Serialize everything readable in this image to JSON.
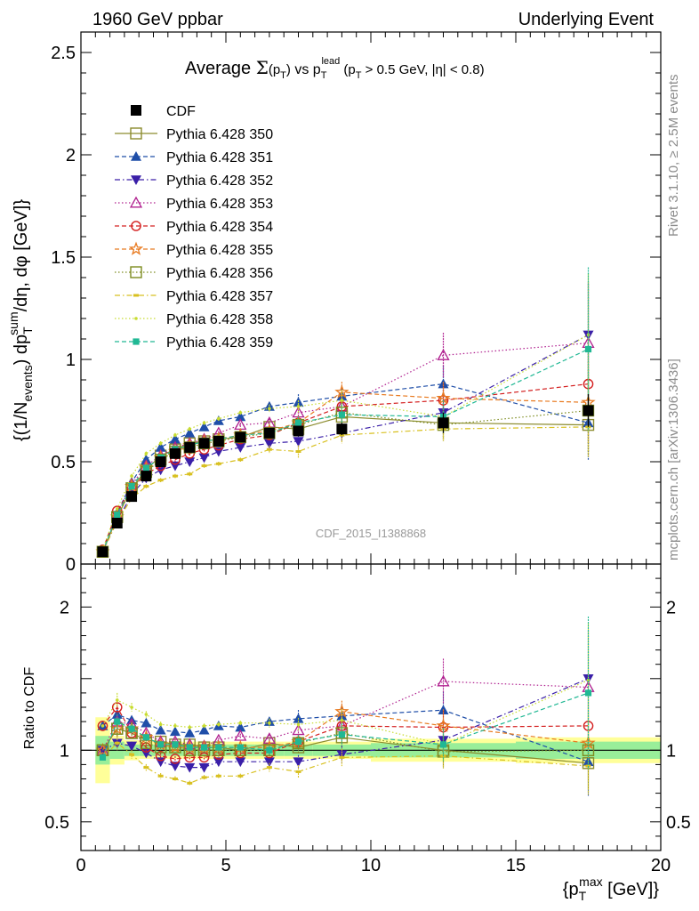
{
  "header": {
    "left": "1960 GeV ppbar",
    "right": "Underlying Event"
  },
  "side_labels": {
    "rivet": "Rivet 3.1.10, ≥ 2.5M events",
    "mcplots": "mcplots.cern.ch [arXiv:1306.3436]"
  },
  "watermark": "CDF_2015_I1388868",
  "chart_data": [
    {
      "type": "scatter",
      "title": "Average Σ(p_T) vs p_T^lead (p_T > 0.5 GeV, |η| < 0.8)",
      "ylabel": "{(1/N_events) dp_T^sum/dη, dφ [GeV]}",
      "xlim": [
        0,
        20
      ],
      "ylim": [
        0,
        2.6
      ],
      "yticks": [
        0,
        0.5,
        1,
        1.5,
        2,
        2.5
      ],
      "ytick_labels": [
        "0",
        "0.5",
        "1",
        "1.5",
        "2",
        "2.5"
      ],
      "legend_position": "upper-left",
      "x": [
        0.75,
        1.25,
        1.75,
        2.25,
        2.75,
        3.25,
        3.75,
        4.25,
        4.75,
        5.5,
        6.5,
        7.5,
        9.0,
        12.5,
        17.5
      ],
      "series": [
        {
          "name": "CDF",
          "color": "#000000",
          "marker": "square-filled",
          "line": "none",
          "values": [
            0.06,
            0.2,
            0.33,
            0.43,
            0.5,
            0.54,
            0.57,
            0.59,
            0.6,
            0.62,
            0.64,
            0.65,
            0.66,
            0.69,
            0.75
          ],
          "errors": [
            0.01,
            0.02,
            0.02,
            0.02,
            0.02,
            0.02,
            0.02,
            0.02,
            0.02,
            0.02,
            0.02,
            0.02,
            0.03,
            0.05,
            0.08
          ]
        },
        {
          "name": "Pythia 6.428 350",
          "color": "#8c8c2e",
          "marker": "square-open",
          "line": "solid",
          "values": [
            0.06,
            0.23,
            0.37,
            0.46,
            0.53,
            0.56,
            0.59,
            0.6,
            0.61,
            0.62,
            0.67,
            0.66,
            0.72,
            0.69,
            0.68
          ],
          "errors": [
            0.0,
            0.01,
            0.01,
            0.01,
            0.01,
            0.01,
            0.01,
            0.01,
            0.01,
            0.01,
            0.02,
            0.03,
            0.05,
            0.08,
            0.15
          ]
        },
        {
          "name": "Pythia 6.428 351",
          "color": "#1f4ea8",
          "marker": "triangle-up-filled",
          "line": "dashed",
          "values": [
            0.07,
            0.25,
            0.4,
            0.51,
            0.57,
            0.61,
            0.64,
            0.67,
            0.7,
            0.72,
            0.77,
            0.79,
            0.82,
            0.88,
            0.69
          ],
          "errors": [
            0.0,
            0.01,
            0.01,
            0.01,
            0.01,
            0.01,
            0.01,
            0.01,
            0.01,
            0.01,
            0.02,
            0.04,
            0.05,
            0.09,
            0.18
          ]
        },
        {
          "name": "Pythia 6.428 352",
          "color": "#3a1fa8",
          "marker": "triangle-down-filled",
          "line": "dashdot",
          "values": [
            0.06,
            0.21,
            0.34,
            0.42,
            0.46,
            0.48,
            0.5,
            0.52,
            0.55,
            0.57,
            0.59,
            0.6,
            0.64,
            0.74,
            1.12
          ],
          "errors": [
            0.0,
            0.01,
            0.01,
            0.01,
            0.01,
            0.01,
            0.01,
            0.01,
            0.01,
            0.01,
            0.02,
            0.03,
            0.04,
            0.08,
            0.25
          ]
        },
        {
          "name": "Pythia 6.428 353",
          "color": "#b0208f",
          "marker": "triangle-up-open",
          "line": "dotted",
          "values": [
            0.06,
            0.24,
            0.39,
            0.48,
            0.53,
            0.57,
            0.59,
            0.61,
            0.64,
            0.68,
            0.69,
            0.74,
            0.77,
            1.02,
            1.08
          ],
          "errors": [
            0.0,
            0.01,
            0.01,
            0.01,
            0.01,
            0.01,
            0.01,
            0.01,
            0.01,
            0.01,
            0.02,
            0.03,
            0.05,
            0.11,
            0.3
          ]
        },
        {
          "name": "Pythia 6.428 354",
          "color": "#d42020",
          "marker": "circle-open",
          "line": "dashed",
          "values": [
            0.07,
            0.26,
            0.37,
            0.44,
            0.48,
            0.51,
            0.54,
            0.56,
            0.58,
            0.61,
            0.63,
            0.69,
            0.77,
            0.8,
            0.88
          ],
          "errors": [
            0.0,
            0.01,
            0.01,
            0.01,
            0.01,
            0.01,
            0.01,
            0.01,
            0.01,
            0.01,
            0.02,
            0.03,
            0.05,
            0.08,
            0.2
          ]
        },
        {
          "name": "Pythia 6.428 355",
          "color": "#e87a20",
          "marker": "star-open",
          "line": "dashed",
          "values": [
            0.06,
            0.23,
            0.38,
            0.47,
            0.52,
            0.55,
            0.58,
            0.6,
            0.61,
            0.63,
            0.65,
            0.69,
            0.84,
            0.81,
            0.79
          ],
          "errors": [
            0.0,
            0.01,
            0.01,
            0.01,
            0.01,
            0.01,
            0.01,
            0.01,
            0.01,
            0.01,
            0.02,
            0.03,
            0.05,
            0.08,
            0.2
          ]
        },
        {
          "name": "Pythia 6.428 356",
          "color": "#7d8c20",
          "marker": "square-open",
          "line": "dotted",
          "values": [
            0.06,
            0.23,
            0.37,
            0.45,
            0.51,
            0.55,
            0.57,
            0.59,
            0.6,
            0.62,
            0.64,
            0.68,
            0.74,
            0.68,
            0.75
          ],
          "errors": [
            0.0,
            0.01,
            0.01,
            0.01,
            0.01,
            0.01,
            0.01,
            0.01,
            0.01,
            0.01,
            0.02,
            0.03,
            0.05,
            0.08,
            0.2
          ]
        },
        {
          "name": "Pythia 6.428 357",
          "color": "#d8c020",
          "marker": "dash",
          "line": "dashdot",
          "values": [
            0.06,
            0.21,
            0.32,
            0.38,
            0.41,
            0.43,
            0.44,
            0.48,
            0.49,
            0.51,
            0.56,
            0.55,
            0.63,
            0.66,
            0.67
          ],
          "errors": [
            0.0,
            0.01,
            0.01,
            0.01,
            0.01,
            0.01,
            0.01,
            0.01,
            0.01,
            0.01,
            0.02,
            0.03,
            0.04,
            0.06,
            0.15
          ]
        },
        {
          "name": "Pythia 6.428 358",
          "color": "#c8dc30",
          "marker": "dot",
          "line": "dotted",
          "values": [
            0.07,
            0.27,
            0.43,
            0.54,
            0.59,
            0.63,
            0.66,
            0.69,
            0.71,
            0.74,
            0.76,
            0.77,
            0.8,
            0.72,
            1.12
          ],
          "errors": [
            0.0,
            0.01,
            0.01,
            0.01,
            0.01,
            0.01,
            0.01,
            0.01,
            0.01,
            0.01,
            0.02,
            0.03,
            0.05,
            0.08,
            0.3
          ]
        },
        {
          "name": "Pythia 6.428 359",
          "color": "#20b894",
          "marker": "square-filled-small",
          "line": "dashed",
          "values": [
            0.06,
            0.24,
            0.38,
            0.47,
            0.52,
            0.56,
            0.58,
            0.6,
            0.61,
            0.63,
            0.64,
            0.69,
            0.73,
            0.72,
            1.05
          ],
          "errors": [
            0.0,
            0.01,
            0.01,
            0.01,
            0.01,
            0.01,
            0.01,
            0.01,
            0.01,
            0.01,
            0.02,
            0.03,
            0.05,
            0.08,
            0.4
          ]
        }
      ]
    },
    {
      "type": "scatter",
      "title": "",
      "ylabel": "Ratio to CDF",
      "xlabel": "{p_T^max [GeV]}",
      "xlim": [
        0,
        20
      ],
      "ylim": [
        0.3,
        2.3
      ],
      "xticks": [
        0,
        5,
        10,
        15,
        20
      ],
      "xtick_labels": [
        "0",
        "5",
        "10",
        "15",
        "20"
      ],
      "yticks": [
        0.5,
        1,
        2
      ],
      "ytick_labels": [
        "0.5",
        "1",
        "2"
      ],
      "reference_line": 1,
      "band_edges": [
        0.5,
        1.0,
        1.5,
        2.0,
        2.5,
        3.0,
        3.5,
        4.0,
        4.5,
        5.0,
        6.0,
        7.0,
        8.0,
        10.0,
        15.0,
        20.0
      ],
      "band_yellow": [
        0.23,
        0.1,
        0.07,
        0.06,
        0.06,
        0.06,
        0.06,
        0.06,
        0.06,
        0.06,
        0.06,
        0.06,
        0.06,
        0.08,
        0.09
      ],
      "band_green": [
        0.1,
        0.06,
        0.04,
        0.04,
        0.04,
        0.04,
        0.04,
        0.04,
        0.04,
        0.04,
        0.04,
        0.04,
        0.04,
        0.05,
        0.06
      ],
      "series_ratio": [
        [
          1.0,
          1.15,
          1.12,
          1.07,
          1.06,
          1.04,
          1.04,
          1.02,
          1.02,
          1.0,
          1.05,
          1.02,
          1.09,
          1.0,
          0.91
        ],
        [
          1.17,
          1.25,
          1.21,
          1.19,
          1.14,
          1.13,
          1.12,
          1.14,
          1.17,
          1.16,
          1.2,
          1.22,
          1.24,
          1.28,
          0.92
        ],
        [
          1.0,
          1.05,
          1.03,
          0.98,
          0.92,
          0.89,
          0.88,
          0.88,
          0.92,
          0.92,
          0.92,
          0.92,
          0.97,
          1.07,
          1.5
        ],
        [
          1.0,
          1.2,
          1.18,
          1.12,
          1.06,
          1.06,
          1.04,
          1.03,
          1.07,
          1.1,
          1.08,
          1.14,
          1.17,
          1.48,
          1.44
        ],
        [
          1.17,
          1.3,
          1.12,
          1.02,
          0.96,
          0.94,
          0.95,
          0.95,
          0.97,
          0.98,
          0.98,
          1.06,
          1.17,
          1.16,
          1.17
        ],
        [
          1.0,
          1.15,
          1.15,
          1.09,
          1.04,
          1.02,
          1.02,
          1.02,
          1.02,
          1.02,
          1.02,
          1.06,
          1.27,
          1.17,
          1.05
        ],
        [
          1.0,
          1.15,
          1.12,
          1.05,
          1.02,
          1.02,
          1.0,
          1.0,
          1.0,
          1.0,
          1.0,
          1.05,
          1.12,
          0.99,
          1.0
        ],
        [
          0.95,
          1.05,
          0.97,
          0.88,
          0.82,
          0.8,
          0.77,
          0.81,
          0.82,
          0.82,
          0.88,
          0.85,
          0.95,
          0.96,
          0.89
        ],
        [
          1.17,
          1.35,
          1.3,
          1.25,
          1.18,
          1.17,
          1.16,
          1.17,
          1.18,
          1.19,
          1.19,
          1.18,
          1.21,
          1.04,
          1.49
        ],
        [
          0.95,
          1.2,
          1.15,
          1.09,
          1.04,
          1.04,
          1.02,
          1.02,
          1.02,
          1.02,
          1.0,
          1.06,
          1.11,
          1.04,
          1.4
        ]
      ]
    }
  ]
}
